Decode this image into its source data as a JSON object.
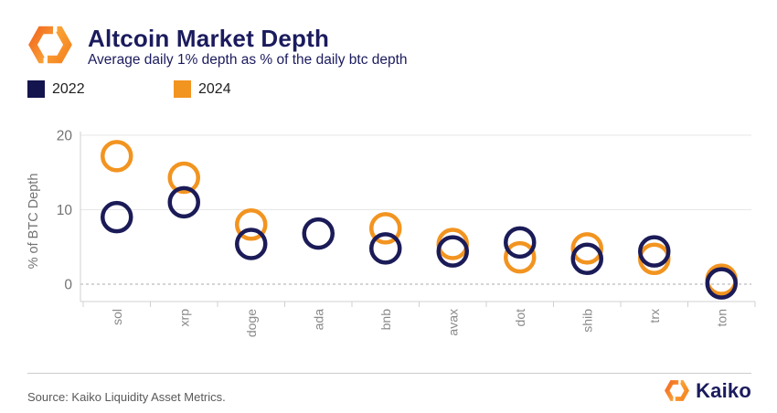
{
  "header": {
    "title": "Altcoin Market Depth",
    "subtitle": "Average daily 1% depth as % of the daily btc depth"
  },
  "legend": {
    "items": [
      {
        "label": "2022",
        "color": "#14144e"
      },
      {
        "label": "2024",
        "color": "#f29420"
      }
    ]
  },
  "chart_data": {
    "type": "scatter",
    "categories": [
      "sol",
      "xrp",
      "doge",
      "ada",
      "bnb",
      "avax",
      "dot",
      "shib",
      "trx",
      "ton"
    ],
    "series": [
      {
        "name": "2022",
        "color": "#1b1b58",
        "values": [
          9.0,
          11.0,
          5.4,
          6.8,
          4.8,
          4.4,
          5.6,
          3.4,
          4.4,
          0.1
        ]
      },
      {
        "name": "2024",
        "color": "#f29420",
        "values": [
          17.2,
          14.3,
          8.0,
          null,
          7.5,
          5.4,
          3.6,
          4.8,
          3.4,
          0.6
        ]
      }
    ],
    "title": "Altcoin Market Depth",
    "xlabel": "",
    "ylabel": "% of BTC Depth",
    "yticks": [
      0,
      10,
      20
    ],
    "ylim": [
      -2.3,
      20.5
    ],
    "grid": "horizontal",
    "zero_line": "dashed",
    "legend_position": "top-left",
    "marker": "open-circle"
  },
  "footer": {
    "source": "Source: Kaiko Liquidity Asset Metrics.",
    "brand": "Kaiko"
  },
  "colors": {
    "navy": "#1b1b58",
    "orange": "#f29420",
    "axis_gray": "#d0d0d0",
    "grid_gray": "#e7e7e7",
    "zero_gray": "#ababab",
    "tick_text": "#737373",
    "cat_text": "#8a8a8a"
  }
}
